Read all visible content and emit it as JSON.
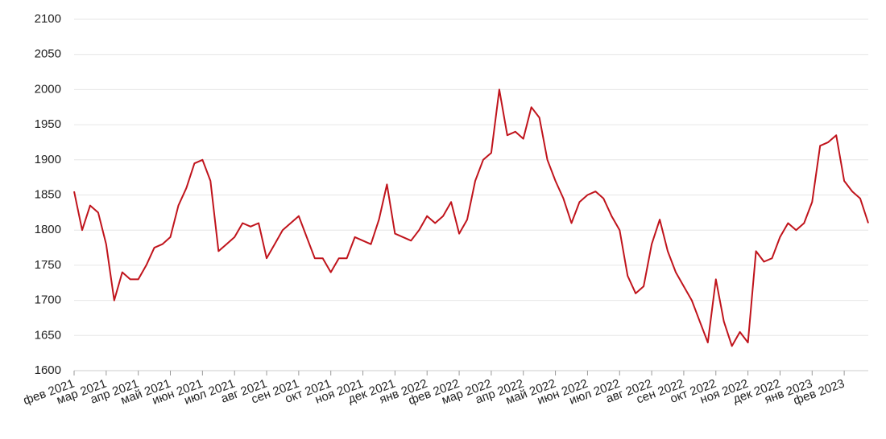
{
  "chart_data": {
    "type": "line",
    "categories": [
      "фев 2021",
      null,
      null,
      null,
      "мар 2021",
      null,
      null,
      null,
      "апр 2021",
      null,
      null,
      null,
      "май 2021",
      null,
      null,
      null,
      "июн 2021",
      null,
      null,
      null,
      "июл 2021",
      null,
      null,
      null,
      "авг 2021",
      null,
      null,
      null,
      "сен 2021",
      null,
      null,
      null,
      "окт 2021",
      null,
      null,
      null,
      "ноя 2021",
      null,
      null,
      null,
      "дек 2021",
      null,
      null,
      null,
      "янв 2022",
      null,
      null,
      null,
      "фев 2022",
      null,
      null,
      null,
      "мар 2022",
      null,
      null,
      null,
      "апр 2022",
      null,
      null,
      null,
      "май 2022",
      null,
      null,
      null,
      "июн 2022",
      null,
      null,
      null,
      "июл 2022",
      null,
      null,
      null,
      "авг 2022",
      null,
      null,
      null,
      "сен 2022",
      null,
      null,
      null,
      "окт 2022",
      null,
      null,
      null,
      "ноя 2022",
      null,
      null,
      null,
      "дек 2022",
      null,
      null,
      null,
      "янв 2023",
      null,
      null,
      null,
      "фев 2023",
      null,
      null,
      null
    ],
    "values": [
      1855,
      1800,
      1835,
      1825,
      1780,
      1700,
      1740,
      1730,
      1730,
      1750,
      1775,
      1780,
      1790,
      1835,
      1860,
      1895,
      1900,
      1870,
      1770,
      1780,
      1790,
      1810,
      1805,
      1810,
      1760,
      1780,
      1800,
      1810,
      1820,
      1790,
      1760,
      1760,
      1740,
      1760,
      1760,
      1790,
      1785,
      1780,
      1815,
      1865,
      1795,
      1790,
      1785,
      1800,
      1820,
      1810,
      1820,
      1840,
      1795,
      1815,
      1870,
      1900,
      1910,
      2000,
      1935,
      1940,
      1930,
      1975,
      1960,
      1900,
      1870,
      1845,
      1810,
      1840,
      1850,
      1855,
      1845,
      1820,
      1800,
      1735,
      1710,
      1720,
      1780,
      1815,
      1770,
      1740,
      1720,
      1700,
      1670,
      1640,
      1730,
      1670,
      1635,
      1655,
      1640,
      1770,
      1755,
      1760,
      1790,
      1810,
      1800,
      1810,
      1840,
      1920,
      1925,
      1935,
      1870,
      1855,
      1845,
      1810
    ],
    "color": "#c0141c",
    "ylim": [
      1600,
      2100
    ],
    "yticks": [
      1600,
      1650,
      1700,
      1750,
      1800,
      1850,
      1900,
      1950,
      2000,
      2050,
      2100
    ],
    "grid": true
  }
}
